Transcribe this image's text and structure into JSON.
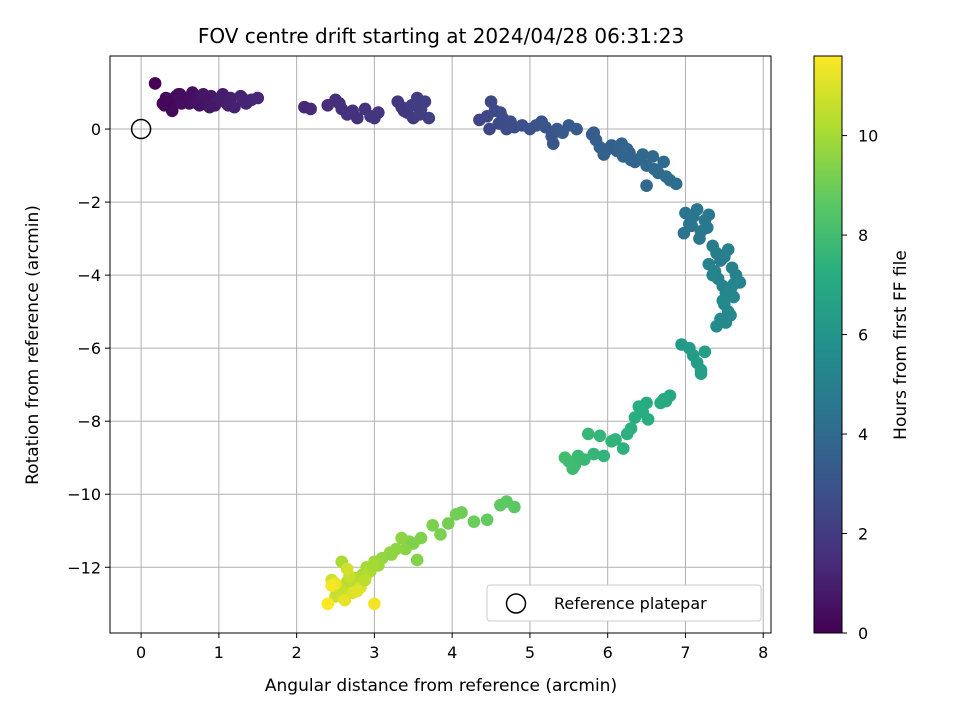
{
  "chart_data": {
    "type": "scatter",
    "title": "FOV centre drift starting at 2024/04/28 06:31:23",
    "xlabel": "Angular distance from reference (arcmin)",
    "ylabel": "Rotation from reference (arcmin)",
    "xlim": [
      -0.4,
      8.1
    ],
    "ylim": [
      -13.8,
      2.0
    ],
    "xticks": [
      "0",
      "1",
      "2",
      "3",
      "4",
      "5",
      "6",
      "7",
      "8"
    ],
    "yticks": [
      "0",
      "−2",
      "−4",
      "−6",
      "−8",
      "−10",
      "−12"
    ],
    "grid": true,
    "colorbar": {
      "label": "Hours from first FF file",
      "range": [
        0,
        11.6
      ],
      "ticks": [
        "0",
        "2",
        "4",
        "6",
        "8",
        "10"
      ],
      "colormap": "viridis"
    },
    "legend": {
      "location": "lower right",
      "entries": [
        "Reference platepar"
      ]
    },
    "reference": {
      "x": 0,
      "y": 0
    },
    "series": [
      {
        "x": [
          0.18,
          0.28,
          0.32,
          0.38,
          0.42,
          0.45,
          0.5,
          0.55,
          0.62,
          0.66,
          0.7,
          0.75,
          0.8,
          0.85,
          0.9,
          0.95,
          1.0,
          1.05,
          1.1,
          1.15,
          1.2,
          1.28,
          1.35,
          1.42,
          1.5,
          0.35,
          0.4,
          0.48,
          0.6,
          0.72,
          0.82,
          0.98,
          1.12,
          1.3,
          0.3,
          0.52,
          0.88,
          2.1,
          2.18,
          2.4,
          2.5,
          2.58,
          2.65,
          2.78,
          2.88,
          2.95,
          3.05,
          2.55,
          2.72,
          3.0,
          3.3,
          3.35,
          3.42,
          3.5,
          3.55,
          3.6,
          3.65,
          3.7,
          3.38,
          3.48,
          3.58,
          4.35,
          4.45,
          4.5,
          4.55,
          4.6,
          4.65,
          4.7,
          4.8,
          4.9,
          4.48,
          4.62,
          4.75,
          5.0,
          5.08,
          5.15,
          5.2,
          5.28,
          5.35,
          5.42,
          5.5,
          5.6,
          5.3
        ],
        "y": [
          1.25,
          0.7,
          0.85,
          0.6,
          0.75,
          0.9,
          0.95,
          0.85,
          0.7,
          1.0,
          0.85,
          0.65,
          0.95,
          0.75,
          0.9,
          0.65,
          0.8,
          0.95,
          0.7,
          0.85,
          0.6,
          0.9,
          0.7,
          0.8,
          0.85,
          0.75,
          0.5,
          0.95,
          0.8,
          0.7,
          0.9,
          0.75,
          0.65,
          0.85,
          0.65,
          0.7,
          0.6,
          0.6,
          0.55,
          0.65,
          0.8,
          0.55,
          0.4,
          0.3,
          0.55,
          0.35,
          0.45,
          0.7,
          0.5,
          0.3,
          0.75,
          0.6,
          0.45,
          0.3,
          0.85,
          0.55,
          0.75,
          0.3,
          0.5,
          0.65,
          0.4,
          0.25,
          0.35,
          0.75,
          0.5,
          0.15,
          0.3,
          0.0,
          0.05,
          0.1,
          0.0,
          0.45,
          0.2,
          0.0,
          0.1,
          0.2,
          0.05,
          -0.2,
          0.0,
          -0.1,
          0.1,
          0.0,
          -0.4
        ],
        "t": [
          0.05,
          0.1,
          0.15,
          0.2,
          0.25,
          0.3,
          0.35,
          0.4,
          0.45,
          0.5,
          0.55,
          0.6,
          0.65,
          0.7,
          0.75,
          0.8,
          0.85,
          0.9,
          0.95,
          1.0,
          1.05,
          1.1,
          1.15,
          1.2,
          1.25,
          0.22,
          0.28,
          0.38,
          0.48,
          0.58,
          0.68,
          0.88,
          0.98,
          1.15,
          0.18,
          0.42,
          0.72,
          1.3,
          1.35,
          1.45,
          1.5,
          1.55,
          1.6,
          1.65,
          1.7,
          1.75,
          1.8,
          1.52,
          1.62,
          1.78,
          1.85,
          1.9,
          1.95,
          2.0,
          2.05,
          2.1,
          2.15,
          2.2,
          1.92,
          2.02,
          2.12,
          2.4,
          2.45,
          2.5,
          2.55,
          2.6,
          2.65,
          2.7,
          2.75,
          2.8,
          2.5,
          2.62,
          2.72,
          2.9,
          2.95,
          3.0,
          3.05,
          3.1,
          3.15,
          3.2,
          3.25,
          3.3,
          3.1
        ]
      },
      {
        "x": [
          5.8,
          5.85,
          5.9,
          5.95,
          6.05,
          6.12,
          6.2,
          6.28,
          6.35,
          6.42,
          6.5,
          6.58,
          6.65,
          6.72,
          6.8,
          6.88,
          5.82,
          6.0,
          6.18,
          6.3,
          6.45,
          6.6,
          6.75,
          6.5,
          6.25,
          7.0,
          7.05,
          7.1,
          7.15,
          7.2,
          7.25,
          7.3,
          6.98,
          7.08,
          7.18,
          7.28,
          7.35,
          7.4,
          7.45,
          7.5,
          7.55,
          7.6,
          7.65,
          7.7,
          7.38,
          7.42,
          7.48,
          7.52,
          7.58,
          7.62,
          7.3,
          7.35,
          7.5,
          7.55,
          7.45,
          7.4,
          7.52,
          7.58,
          7.62,
          7.48
        ],
        "y": [
          -0.15,
          -0.3,
          -0.5,
          -0.7,
          -0.45,
          -0.6,
          -0.75,
          -0.65,
          -0.9,
          -0.8,
          -1.0,
          -0.75,
          -1.2,
          -0.9,
          -1.4,
          -1.5,
          -0.1,
          -0.55,
          -0.4,
          -0.85,
          -0.7,
          -1.1,
          -1.3,
          -1.55,
          -0.55,
          -2.3,
          -2.6,
          -2.4,
          -2.2,
          -2.8,
          -2.5,
          -2.35,
          -2.85,
          -2.65,
          -3.0,
          -2.7,
          -3.2,
          -3.4,
          -3.6,
          -3.5,
          -3.3,
          -3.8,
          -4.0,
          -4.2,
          -3.9,
          -4.1,
          -4.3,
          -4.5,
          -4.4,
          -4.6,
          -3.7,
          -4.0,
          -4.8,
          -5.0,
          -5.2,
          -5.4,
          -5.3,
          -5.1,
          -4.25,
          -4.7
        ],
        "t": [
          3.4,
          3.45,
          3.5,
          3.55,
          3.6,
          3.65,
          3.7,
          3.75,
          3.8,
          3.85,
          3.9,
          3.95,
          4.0,
          4.05,
          4.1,
          4.15,
          3.42,
          3.58,
          3.68,
          3.78,
          3.88,
          3.98,
          4.08,
          3.95,
          3.72,
          4.4,
          4.45,
          4.5,
          4.55,
          4.6,
          4.65,
          4.7,
          4.42,
          4.48,
          4.58,
          4.68,
          4.8,
          4.85,
          4.9,
          4.95,
          5.0,
          5.05,
          5.1,
          5.15,
          5.0,
          5.08,
          5.18,
          5.22,
          5.28,
          5.32,
          5.12,
          5.2,
          5.35,
          5.4,
          5.45,
          5.5,
          5.48,
          5.38,
          5.3,
          5.42
        ]
      },
      {
        "x": [
          6.95,
          7.05,
          7.1,
          7.15,
          7.2,
          7.25,
          7.2,
          6.8,
          6.75,
          6.72,
          6.68,
          6.5,
          6.45,
          6.4,
          6.35,
          6.3,
          6.25,
          6.2,
          6.1,
          6.05,
          5.95,
          5.9,
          5.82,
          5.75,
          5.7,
          5.62,
          5.58,
          5.55,
          5.5,
          5.45,
          6.52
        ],
        "y": [
          -5.9,
          -6.0,
          -6.2,
          -6.4,
          -6.6,
          -6.1,
          -6.7,
          -7.3,
          -7.45,
          -7.4,
          -7.5,
          -7.5,
          -7.75,
          -7.6,
          -7.9,
          -8.2,
          -8.35,
          -8.75,
          -8.5,
          -8.55,
          -8.95,
          -8.4,
          -8.9,
          -8.35,
          -9.05,
          -8.95,
          -9.2,
          -9.3,
          -9.1,
          -9.0,
          -7.95
        ],
        "t": [
          6.2,
          6.3,
          6.35,
          6.4,
          6.45,
          6.5,
          6.55,
          6.9,
          6.95,
          7.0,
          7.05,
          7.1,
          7.15,
          7.2,
          7.25,
          7.3,
          7.35,
          7.4,
          7.45,
          7.5,
          7.55,
          7.6,
          7.65,
          7.7,
          7.75,
          7.8,
          7.85,
          7.9,
          7.95,
          8.0,
          7.2
        ]
      },
      {
        "x": [
          4.8,
          4.7,
          4.62,
          4.45,
          4.28,
          4.12,
          4.05,
          3.95,
          3.85,
          3.75,
          3.6,
          3.55,
          3.45,
          3.4,
          3.35,
          3.28,
          3.2,
          3.1,
          3.05,
          3.0,
          2.95,
          2.9,
          2.85,
          2.8,
          2.75,
          2.7,
          2.65,
          2.6,
          2.55,
          2.5,
          2.45,
          2.4,
          2.62,
          2.72,
          2.82,
          2.92,
          2.68,
          2.58,
          2.78,
          3.0,
          2.5,
          2.88,
          3.22,
          3.5,
          2.98,
          2.65,
          2.45
        ],
        "y": [
          -10.35,
          -10.2,
          -10.3,
          -10.7,
          -10.75,
          -10.5,
          -10.55,
          -10.8,
          -11.1,
          -10.85,
          -11.2,
          -11.8,
          -11.3,
          -11.5,
          -11.2,
          -11.5,
          -11.6,
          -11.75,
          -11.95,
          -11.85,
          -12.1,
          -12.0,
          -12.2,
          -12.45,
          -12.3,
          -12.5,
          -12.4,
          -12.7,
          -12.6,
          -12.8,
          -12.35,
          -13.0,
          -12.9,
          -12.7,
          -12.55,
          -12.15,
          -12.25,
          -11.85,
          -12.65,
          -13.0,
          -12.45,
          -12.35,
          -11.65,
          -11.35,
          -11.95,
          -12.05,
          -12.5
        ],
        "t": [
          8.6,
          8.65,
          8.7,
          8.8,
          8.9,
          9.0,
          9.05,
          9.1,
          9.2,
          9.25,
          9.3,
          9.4,
          9.45,
          9.5,
          9.55,
          9.6,
          9.65,
          9.7,
          9.8,
          9.85,
          9.9,
          10.0,
          10.05,
          10.1,
          10.2,
          10.3,
          10.4,
          10.5,
          10.6,
          10.7,
          10.8,
          11.6,
          11.2,
          11.0,
          10.9,
          10.2,
          10.6,
          10.1,
          11.1,
          11.4,
          11.3,
          10.4,
          9.6,
          9.3,
          10.0,
          10.8,
          11.5
        ]
      }
    ]
  }
}
